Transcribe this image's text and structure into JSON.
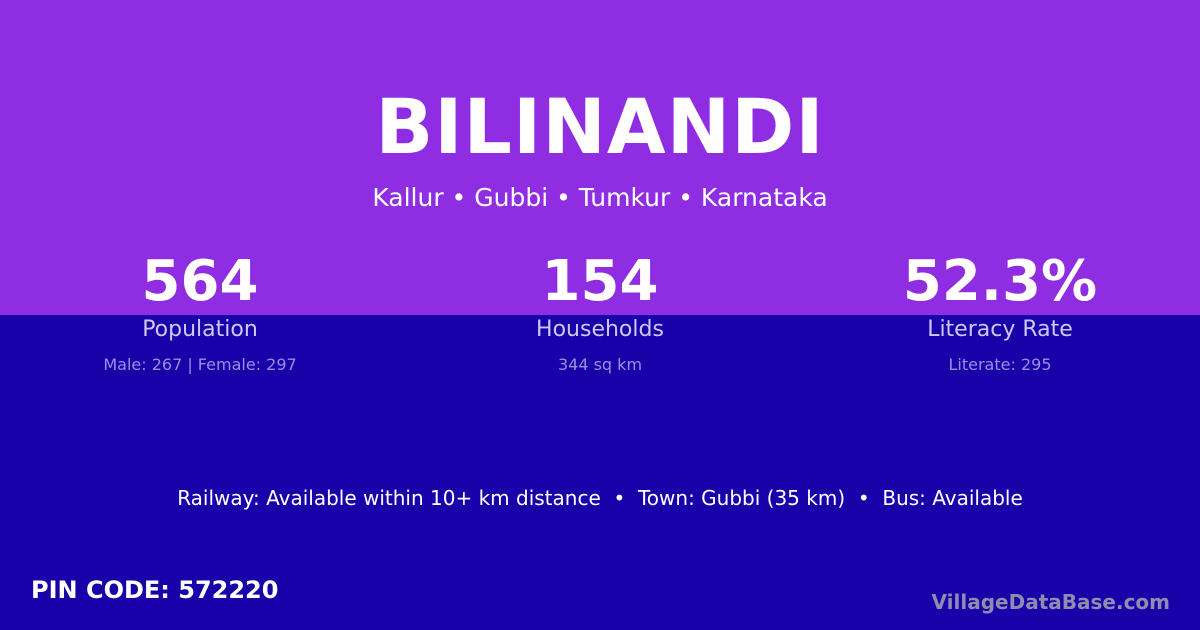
{
  "colors": {
    "top_bg": "#8e2de2",
    "bottom_bg": "#1a00a9"
  },
  "title": "BILINANDI",
  "location": "Kallur • Gubbi • Tumkur • Karnataka",
  "stats": [
    {
      "value": "564",
      "label": "Population",
      "detail": "Male: 267 | Female: 297"
    },
    {
      "value": "154",
      "label": "Households",
      "detail": "344 sq km"
    },
    {
      "value": "52.3%",
      "label": "Literacy Rate",
      "detail": "Literate: 295"
    }
  ],
  "facts": "Railway: Available within 10+ km distance  •  Town: Gubbi (35 km)  •  Bus: Available",
  "pin": "PIN CODE: 572220",
  "brand": "VillageDataBase.com"
}
